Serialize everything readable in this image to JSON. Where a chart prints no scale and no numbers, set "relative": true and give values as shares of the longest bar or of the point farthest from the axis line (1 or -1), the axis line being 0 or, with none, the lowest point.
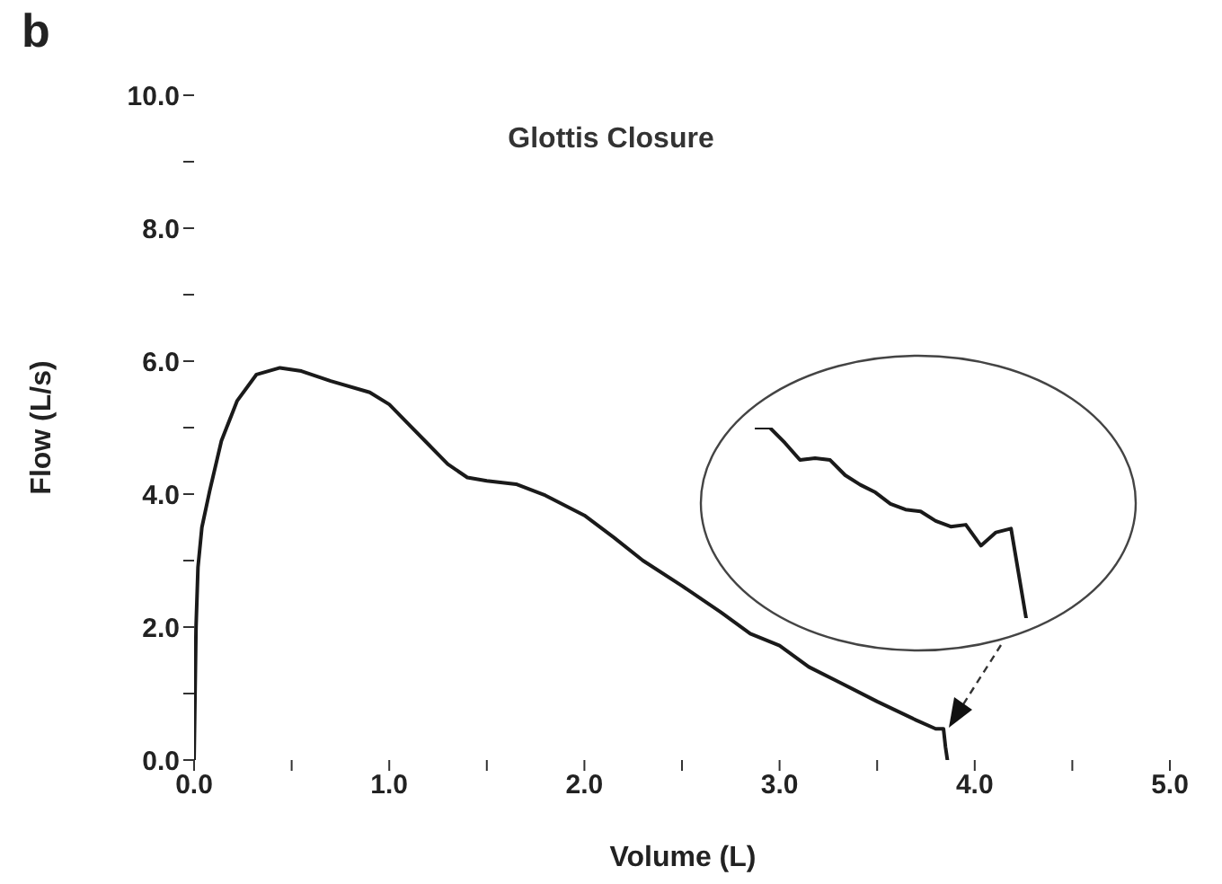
{
  "chart_data": [
    {
      "type": "line",
      "title": "Glottis Closure",
      "xlabel": "Volume (L)",
      "ylabel": "Flow (L/s)",
      "annotations": [
        "b"
      ],
      "x": [
        0,
        0.005,
        0.01,
        0.02,
        0.04,
        0.08,
        0.14,
        0.22,
        0.32,
        0.44,
        0.55,
        0.7,
        0.9,
        1.0,
        1.1,
        1.2,
        1.3,
        1.4,
        1.5,
        1.65,
        1.8,
        2.0,
        2.15,
        2.3,
        2.5,
        2.7,
        2.85,
        3.0,
        3.15,
        3.3,
        3.5,
        3.7,
        3.8,
        3.84,
        3.85,
        3.86
      ],
      "series": [
        {
          "color": "#1a1a1a",
          "values": [
            0,
            1.0,
            2.0,
            2.9,
            3.5,
            4.05,
            4.8,
            5.4,
            5.8,
            5.9,
            5.85,
            5.7,
            5.53,
            5.35,
            5.05,
            4.75,
            4.45,
            4.25,
            4.2,
            4.15,
            3.98,
            3.68,
            3.35,
            3.0,
            2.62,
            2.22,
            1.9,
            1.72,
            1.4,
            1.18,
            0.88,
            0.6,
            0.47,
            0.47,
            0.2,
            0
          ]
        }
      ],
      "xlim": [
        0,
        5
      ],
      "ylim": [
        0,
        10
      ],
      "xticks": [
        {
          "value": 0,
          "label": "0.0"
        },
        {
          "value": 0.5,
          "label": null
        },
        {
          "value": 1,
          "label": "1.0"
        },
        {
          "value": 1.5,
          "label": null
        },
        {
          "value": 2,
          "label": "2.0"
        },
        {
          "value": 2.5,
          "label": null
        },
        {
          "value": 3,
          "label": "3.0"
        },
        {
          "value": 3.5,
          "label": null
        },
        {
          "value": 4,
          "label": "4.0"
        },
        {
          "value": 4.5,
          "label": null
        },
        {
          "value": 5,
          "label": "5.0"
        }
      ],
      "yticks": [
        {
          "value": 0,
          "label": "0.0"
        },
        {
          "value": 1,
          "label": null
        },
        {
          "value": 2,
          "label": "2.0"
        },
        {
          "value": 3,
          "label": null
        },
        {
          "value": 4,
          "label": "4.0"
        },
        {
          "value": 5,
          "label": null
        },
        {
          "value": 6,
          "label": "6.0"
        },
        {
          "value": 7,
          "label": null
        },
        {
          "value": 8,
          "label": "8.0"
        },
        {
          "value": 9,
          "label": null
        },
        {
          "value": 10,
          "label": "10.0"
        }
      ],
      "grid": false,
      "legend": false,
      "marker": "none",
      "line_style": "solid"
    },
    {
      "type": "line",
      "relative": true,
      "categories": [
        null,
        null,
        null,
        null,
        null,
        null,
        null,
        null,
        null,
        null,
        null,
        null,
        null,
        null,
        null,
        null,
        null,
        null,
        null
      ],
      "series": [
        {
          "color": "#1a1a1a",
          "values": [
            1,
            1,
            0.92,
            0.83,
            0.84,
            0.83,
            0.75,
            0.7,
            0.66,
            0.6,
            0.57,
            0.56,
            0.51,
            0.48,
            0.49,
            0.38,
            0.45,
            0.47,
            0
          ]
        }
      ],
      "grid": false,
      "legend": false,
      "marker": "none",
      "line_style": "solid"
    }
  ]
}
